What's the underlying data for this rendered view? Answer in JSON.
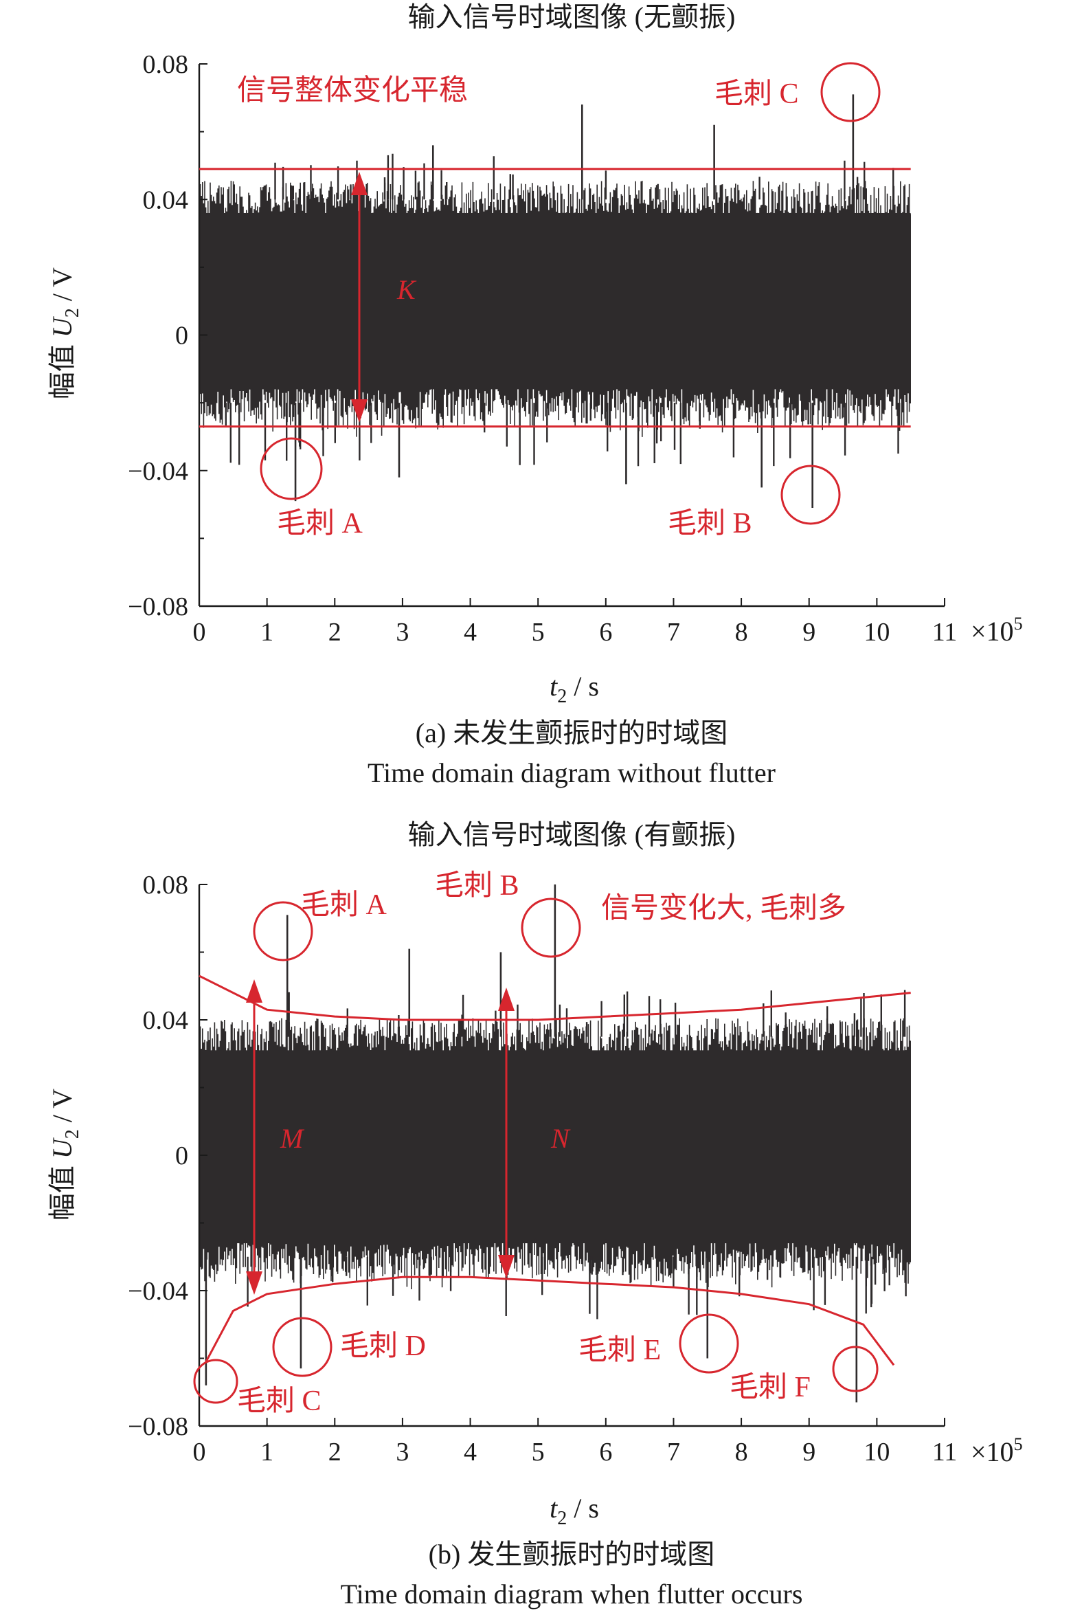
{
  "colors": {
    "signal": "#2e2b2c",
    "annotation": "#d7262e",
    "axis": "#1a1a1a"
  },
  "chart_data": [
    {
      "type": "line",
      "title": "输入信号时域图像 (无颤振)",
      "ylabel_prefix": "幅值 ",
      "ylabel_var": "U",
      "ylabel_sub": "2",
      "ylabel_unit": " / V",
      "xlabel_var": "t",
      "xlabel_sub": "2",
      "xlabel_unit": " / s",
      "x_multiplier_prefix": "×10",
      "x_multiplier_exp": "5",
      "xlim": [
        0,
        11
      ],
      "ylim": [
        -0.08,
        0.08
      ],
      "xticks": [
        0,
        1,
        2,
        3,
        4,
        5,
        6,
        7,
        8,
        9,
        10,
        11
      ],
      "yticks": [
        0.08,
        0.04,
        0,
        -0.04,
        -0.08
      ],
      "ytick_labels": [
        "0.08",
        "0.04",
        "0",
        "−0.04",
        "−0.08"
      ],
      "signal": {
        "x_start": 0,
        "x_end": 10.5,
        "upper_band": 0.04,
        "lower_band": -0.02
      },
      "spikes": [
        {
          "x": 1.42,
          "y": -0.049
        },
        {
          "x": 9.05,
          "y": -0.051
        },
        {
          "x": 9.65,
          "y": 0.071
        },
        {
          "x": 5.65,
          "y": 0.068
        },
        {
          "x": 7.6,
          "y": 0.062
        },
        {
          "x": 3.45,
          "y": 0.056
        },
        {
          "x": 2.95,
          "y": -0.042
        },
        {
          "x": 6.3,
          "y": -0.044
        },
        {
          "x": 8.3,
          "y": -0.045
        }
      ],
      "reference_lines": {
        "upper": 0.049,
        "lower": -0.027
      },
      "annotations": {
        "headline": "信号整体变化平稳",
        "band_label": "K",
        "spike_labels": [
          "毛刺 A",
          "毛刺 B",
          "毛刺 C"
        ]
      },
      "caption_cn": "(a) 未发生颤振时的时域图",
      "caption_en": "Time domain diagram without flutter"
    },
    {
      "type": "line",
      "title": "输入信号时域图像 (有颤振)",
      "ylabel_prefix": "幅值 ",
      "ylabel_var": "U",
      "ylabel_sub": "2",
      "ylabel_unit": " / V",
      "xlabel_var": "t",
      "xlabel_sub": "2",
      "xlabel_unit": " / s",
      "x_multiplier_prefix": "×10",
      "x_multiplier_exp": "5",
      "xlim": [
        0,
        11
      ],
      "ylim": [
        -0.08,
        0.08
      ],
      "xticks": [
        0,
        1,
        2,
        3,
        4,
        5,
        6,
        7,
        8,
        9,
        10,
        11
      ],
      "yticks": [
        0.08,
        0.04,
        0,
        -0.04,
        -0.08
      ],
      "ytick_labels": [
        "0.08",
        "0.04",
        "0",
        "−0.04",
        "−0.08"
      ],
      "signal": {
        "x_start": 0,
        "x_end": 10.5,
        "upper_band": 0.035,
        "lower_band": -0.03
      },
      "spikes": [
        {
          "x": 1.3,
          "y": 0.071
        },
        {
          "x": 5.25,
          "y": 0.08
        },
        {
          "x": 0.1,
          "y": -0.068
        },
        {
          "x": 1.5,
          "y": -0.063
        },
        {
          "x": 7.5,
          "y": -0.06
        },
        {
          "x": 9.7,
          "y": -0.073
        },
        {
          "x": 3.1,
          "y": 0.061
        },
        {
          "x": 4.45,
          "y": 0.06
        }
      ],
      "envelope_upper": [
        [
          0,
          0.053
        ],
        [
          1,
          0.043
        ],
        [
          2,
          0.041
        ],
        [
          3,
          0.04
        ],
        [
          4,
          0.04
        ],
        [
          5,
          0.04
        ],
        [
          6,
          0.041
        ],
        [
          7,
          0.042
        ],
        [
          8,
          0.043
        ],
        [
          9,
          0.045
        ],
        [
          10,
          0.047
        ],
        [
          10.5,
          0.048
        ]
      ],
      "envelope_lower": [
        [
          0.1,
          -0.061
        ],
        [
          0.5,
          -0.046
        ],
        [
          1,
          -0.041
        ],
        [
          2,
          -0.038
        ],
        [
          3,
          -0.036
        ],
        [
          4,
          -0.036
        ],
        [
          5,
          -0.037
        ],
        [
          6,
          -0.038
        ],
        [
          7,
          -0.039
        ],
        [
          8,
          -0.041
        ],
        [
          9,
          -0.044
        ],
        [
          9.8,
          -0.05
        ],
        [
          10.25,
          -0.062
        ]
      ],
      "annotations": {
        "headline": "信号变化大, 毛刺多",
        "band_label_left": "M",
        "band_label_right": "N",
        "spike_labels": [
          "毛刺 A",
          "毛刺 B",
          "毛刺 C",
          "毛刺 D",
          "毛刺 E",
          "毛刺 F"
        ]
      },
      "caption_cn": "(b) 发生颤振时的时域图",
      "caption_en": "Time domain diagram when flutter occurs"
    }
  ]
}
